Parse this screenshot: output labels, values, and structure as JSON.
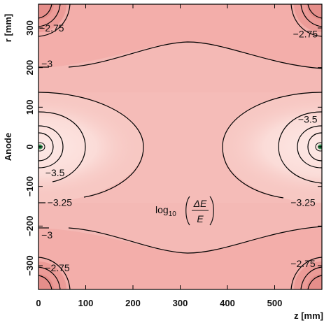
{
  "chart_data": {
    "type": "heatmap",
    "quantity_label": {
      "prefix": "log",
      "subscript": "10",
      "numerator": "ΔE",
      "denominator": "E"
    },
    "xlabel": "z [mm]",
    "ylabel_units": "r [mm]",
    "ylabel_extra": "Anode",
    "xlim": [
      0,
      600
    ],
    "ylim": [
      -360,
      360
    ],
    "xticks": [
      "0",
      "100",
      "200",
      "300",
      "400",
      "500"
    ],
    "xtick_values": [
      0,
      100,
      200,
      300,
      400,
      500
    ],
    "yticks": [
      "−300",
      "−200",
      "−100",
      "0",
      "100",
      "200",
      "300"
    ],
    "ytick_values": [
      -300,
      -200,
      -100,
      0,
      100,
      200,
      300
    ],
    "contour_levels": [
      -2.75,
      -3,
      -3.25,
      -3.5
    ],
    "contour_labels": [
      {
        "text": "−2.75",
        "z": 28,
        "r": 300
      },
      {
        "text": "−2.75",
        "z": 565,
        "r": 285
      },
      {
        "text": "−3",
        "z": 18,
        "r": 210
      },
      {
        "text": "−3.5",
        "z": 570,
        "r": 70
      },
      {
        "text": "−3.5",
        "z": 35,
        "r": -65
      },
      {
        "text": "−3.25",
        "z": 45,
        "r": -140
      },
      {
        "text": "−3.25",
        "z": 560,
        "r": -140
      },
      {
        "text": "−3",
        "z": 18,
        "r": -222
      },
      {
        "text": "−2.75",
        "z": 40,
        "r": -305
      },
      {
        "text": "−2.75",
        "z": 560,
        "r": -295
      }
    ],
    "colors": {
      "high": "#f0a3a0",
      "mid": "#f6bfbb",
      "low": "#fbdfdc",
      "singularity": "#2e8b57",
      "contour": "#000000"
    }
  }
}
